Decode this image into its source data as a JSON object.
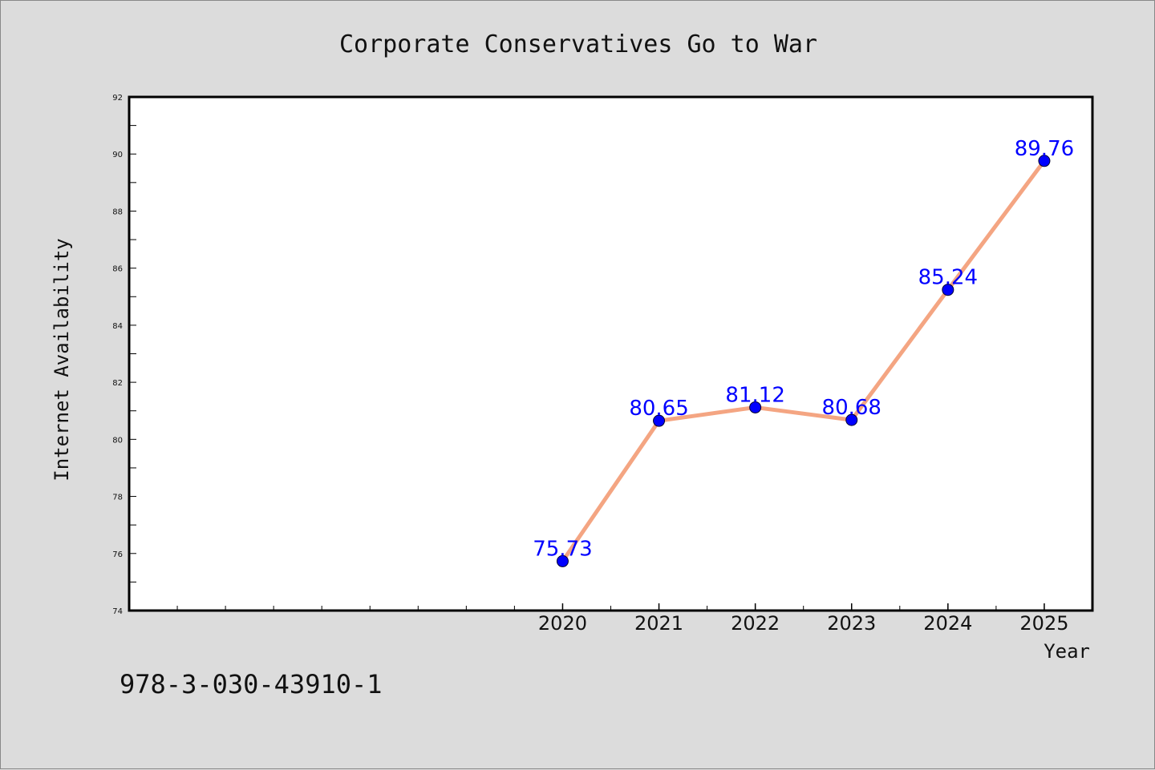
{
  "chart_data": {
    "type": "line",
    "title": "Corporate Conservatives Go to War",
    "xlabel": "Year",
    "ylabel": "Internet Availability",
    "x": [
      2020,
      2021,
      2022,
      2023,
      2024,
      2025
    ],
    "x_tick_labels": [
      "2020",
      "2021",
      "2022",
      "2023",
      "2024",
      "2025"
    ],
    "xlim": [
      2015.5,
      2025.5
    ],
    "ylim": [
      74,
      92
    ],
    "y_ticks": [
      74,
      76,
      78,
      80,
      82,
      84,
      86,
      88,
      90,
      92
    ],
    "series": [
      {
        "values": [
          75.73,
          80.65,
          81.12,
          80.68,
          85.24,
          89.76
        ],
        "data_labels": [
          "75.73",
          "80.65",
          "81.12",
          "80.68",
          "85.24",
          "89.76"
        ],
        "line_color": "#f4a582",
        "marker_color": "#0000ff",
        "label_color": "#0000ff"
      }
    ],
    "grid": false,
    "legend": "none"
  },
  "footnote": "978-3-030-43910-1",
  "colors": {
    "background": "#dcdcdc",
    "plot_background": "#ffffff",
    "axes": "#000000"
  }
}
